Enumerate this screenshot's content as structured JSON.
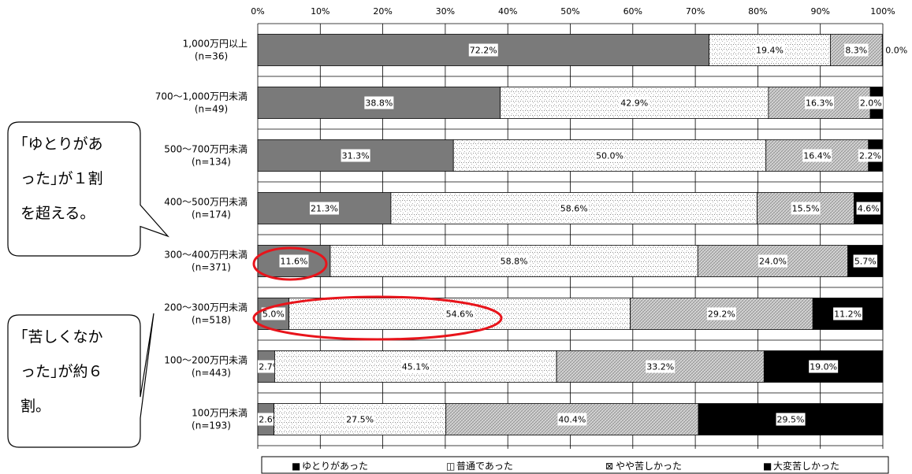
{
  "chart_data": {
    "type": "bar",
    "orientation": "horizontal",
    "stacked": "percent",
    "xlim": [
      0,
      100
    ],
    "x_ticks": [
      "0%",
      "10%",
      "20%",
      "30%",
      "40%",
      "50%",
      "60%",
      "70%",
      "80%",
      "90%",
      "100%"
    ],
    "grid": true,
    "legend_position": "bottom",
    "categories": [
      {
        "label": "1,000万円以上",
        "n": "(n=36)"
      },
      {
        "label": "700～1,000万円未満",
        "n": "(n=49)"
      },
      {
        "label": "500～700万円未満",
        "n": "(n=134)"
      },
      {
        "label": "400～500万円未満",
        "n": "(n=174)"
      },
      {
        "label": "300～400万円未満",
        "n": "(n=371)"
      },
      {
        "label": "200～300万円未満",
        "n": "(n=518)"
      },
      {
        "label": "100～200万円未満",
        "n": "(n=443)"
      },
      {
        "label": "100万円未満",
        "n": "(n=193)"
      }
    ],
    "series": [
      {
        "name": "ゆとりがあった",
        "color": "#7a7a7a",
        "pattern": "solid",
        "values": [
          72.2,
          38.8,
          31.3,
          21.3,
          11.6,
          5.0,
          2.7,
          2.6
        ],
        "labels": [
          "72.2%",
          "38.8%",
          "31.3%",
          "21.3%",
          "11.6%",
          "5.0%",
          "2.7%",
          "2.6%"
        ]
      },
      {
        "name": "普通であった",
        "color": "#ffffff",
        "pattern": "dotgrid",
        "values": [
          19.4,
          42.9,
          50.0,
          58.6,
          58.8,
          54.6,
          45.1,
          27.5
        ],
        "labels": [
          "19.4%",
          "42.9%",
          "50.0%",
          "58.6%",
          "58.8%",
          "54.6%",
          "45.1%",
          "27.5%"
        ]
      },
      {
        "name": "やや苦しかった",
        "color": "#c8c8c8",
        "pattern": "crosshatch",
        "values": [
          8.3,
          16.3,
          16.4,
          15.5,
          24.0,
          29.2,
          33.2,
          40.4
        ],
        "labels": [
          "8.3%",
          "16.3%",
          "16.4%",
          "15.5%",
          "24.0%",
          "29.2%",
          "33.2%",
          "40.4%"
        ]
      },
      {
        "name": "大変苦しかった",
        "color": "#000000",
        "pattern": "solid",
        "values": [
          0.0,
          2.0,
          2.2,
          4.6,
          5.7,
          11.2,
          19.0,
          29.5
        ],
        "labels": [
          "0.0%",
          "2.0%",
          "2.2%",
          "4.6%",
          "5.7%",
          "11.2%",
          "19.0%",
          "29.5%"
        ]
      }
    ],
    "legend_symbols": [
      "■",
      "◫",
      "⊠",
      "■"
    ],
    "highlight_colors": {
      "ellipse": "#e8141b"
    }
  },
  "callouts": {
    "top": [
      "｢ゆとりがあ",
      "った｣が１割",
      "を超える。"
    ],
    "bottom": [
      "｢苦しくなか",
      "った｣が約６",
      "割。"
    ]
  }
}
